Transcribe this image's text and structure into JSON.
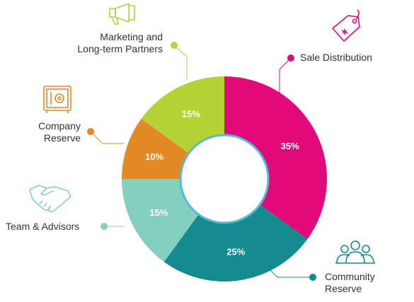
{
  "chart_data": {
    "type": "pie",
    "donut": true,
    "slices": [
      {
        "label": "Sale Distribution",
        "value": 35,
        "value_label": "35%",
        "color": "#e20a7a"
      },
      {
        "label": "Community Reserve",
        "value": 25,
        "value_label": "25%",
        "color": "#138b8f"
      },
      {
        "label": "Team & Advisors",
        "value": 15,
        "value_label": "15%",
        "color": "#83d0c1"
      },
      {
        "label": "Company Reserve",
        "value": 10,
        "value_label": "10%",
        "color": "#e18a26"
      },
      {
        "label": "Marketing and Long-term Partners",
        "value": 15,
        "value_label": "15%",
        "color": "#b4d334"
      }
    ]
  },
  "labels": {
    "sale": "Sale Distribution",
    "community_1": "Community",
    "community_2": "Reserve",
    "team": "Team & Advisors",
    "company_1": "Company",
    "company_2": "Reserve",
    "marketing_1": "Marketing and",
    "marketing_2": "Long-term Partners"
  },
  "icons": {
    "sale": "price-tag-icon",
    "community": "people-group-icon",
    "team": "handshake-icon",
    "company": "safe-icon",
    "marketing": "megaphone-icon"
  },
  "ring_color": "#5ab8d6"
}
